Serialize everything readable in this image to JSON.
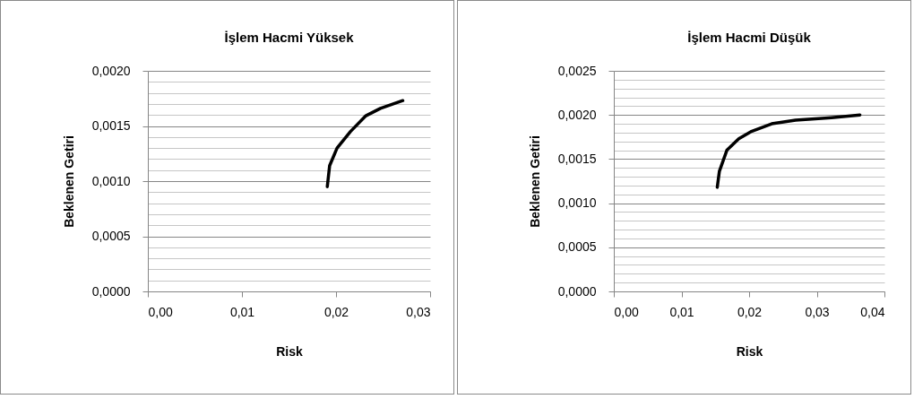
{
  "chart_data": [
    {
      "type": "line",
      "title": "İşlem Hacmi Yüksek",
      "xlabel": "Risk",
      "ylabel": "Beklenen Getiri",
      "grid": "y",
      "marker": "none",
      "line_style": "solid",
      "xlim": [
        0,
        0.03
      ],
      "xticks": [
        {
          "value": 0,
          "label": "0,00"
        },
        {
          "value": 0.01,
          "label": "0,01"
        },
        {
          "value": 0.02,
          "label": "0,02"
        },
        {
          "value": 0.03,
          "label": "0,03"
        }
      ],
      "ylim": [
        0,
        0.002
      ],
      "yticks": [
        {
          "value": 0,
          "label": "0,0000"
        },
        {
          "value": 0.0001,
          "label": null
        },
        {
          "value": 0.0002,
          "label": null
        },
        {
          "value": 0.0003,
          "label": null
        },
        {
          "value": 0.0004,
          "label": null
        },
        {
          "value": 0.0005,
          "label": "0,0005"
        },
        {
          "value": 0.0006,
          "label": null
        },
        {
          "value": 0.0007,
          "label": null
        },
        {
          "value": 0.0008,
          "label": null
        },
        {
          "value": 0.0009,
          "label": null
        },
        {
          "value": 0.001,
          "label": "0,0010"
        },
        {
          "value": 0.0011,
          "label": null
        },
        {
          "value": 0.0012,
          "label": null
        },
        {
          "value": 0.0013,
          "label": null
        },
        {
          "value": 0.0014,
          "label": null
        },
        {
          "value": 0.0015,
          "label": "0,0015"
        },
        {
          "value": 0.0016,
          "label": null
        },
        {
          "value": 0.0017,
          "label": null
        },
        {
          "value": 0.0018,
          "label": null
        },
        {
          "value": 0.0019,
          "label": null
        },
        {
          "value": 0.002,
          "label": "0,0020"
        }
      ],
      "x": [
        0.01907,
        0.01932,
        0.02011,
        0.02154,
        0.02313,
        0.02472,
        0.0271
      ],
      "series": [
        {
          "color": "#000000",
          "values": [
            0.00095,
            0.00114,
            0.0013,
            0.00145,
            0.00159,
            0.00166,
            0.00173
          ]
        }
      ]
    },
    {
      "type": "line",
      "title": "İşlem Hacmi Düşük",
      "xlabel": "Risk",
      "ylabel": "Beklenen Getiri",
      "grid": "y",
      "marker": "none",
      "line_style": "solid",
      "xlim": [
        0,
        0.04
      ],
      "xticks": [
        {
          "value": 0,
          "label": "0,00"
        },
        {
          "value": 0.01,
          "label": "0,01"
        },
        {
          "value": 0.02,
          "label": "0,02"
        },
        {
          "value": 0.03,
          "label": "0,03"
        },
        {
          "value": 0.04,
          "label": "0,04"
        }
      ],
      "ylim": [
        0,
        0.0025
      ],
      "yticks": [
        {
          "value": 0,
          "label": "0,0000"
        },
        {
          "value": 0.0001,
          "label": null
        },
        {
          "value": 0.0002,
          "label": null
        },
        {
          "value": 0.0003,
          "label": null
        },
        {
          "value": 0.0004,
          "label": null
        },
        {
          "value": 0.0005,
          "label": "0,0005"
        },
        {
          "value": 0.0006,
          "label": null
        },
        {
          "value": 0.0007,
          "label": null
        },
        {
          "value": 0.0008,
          "label": null
        },
        {
          "value": 0.0009,
          "label": null
        },
        {
          "value": 0.001,
          "label": "0,0010"
        },
        {
          "value": 0.0011,
          "label": null
        },
        {
          "value": 0.0012,
          "label": null
        },
        {
          "value": 0.0013,
          "label": null
        },
        {
          "value": 0.0014,
          "label": null
        },
        {
          "value": 0.0015,
          "label": "0,0015"
        },
        {
          "value": 0.0016,
          "label": null
        },
        {
          "value": 0.0017,
          "label": null
        },
        {
          "value": 0.0018,
          "label": null
        },
        {
          "value": 0.0019,
          "label": null
        },
        {
          "value": 0.002,
          "label": "0,0020"
        },
        {
          "value": 0.0021,
          "label": null
        },
        {
          "value": 0.0022,
          "label": null
        },
        {
          "value": 0.0023,
          "label": null
        },
        {
          "value": 0.0024,
          "label": null
        },
        {
          "value": 0.0025,
          "label": "0,0025"
        }
      ],
      "x": [
        0.01529,
        0.0156,
        0.01671,
        0.01847,
        0.02024,
        0.02334,
        0.02687,
        0.03218,
        0.03638
      ],
      "series": [
        {
          "color": "#000000",
          "values": [
            0.00118,
            0.00136,
            0.0016,
            0.00173,
            0.00181,
            0.0019,
            0.00194,
            0.00197,
            0.002
          ]
        }
      ]
    }
  ]
}
